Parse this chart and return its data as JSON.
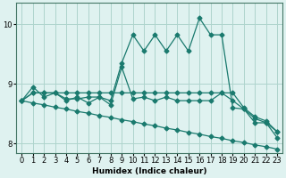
{
  "title": "",
  "xlabel": "Humidex (Indice chaleur)",
  "ylabel": "",
  "background_color": "#dff2f0",
  "grid_color": "#aed4cc",
  "line_color": "#1a7a6e",
  "xlim": [
    -0.5,
    23.5
  ],
  "ylim": [
    7.85,
    10.35
  ],
  "yticks": [
    8,
    9,
    10
  ],
  "xticks": [
    0,
    1,
    2,
    3,
    4,
    5,
    6,
    7,
    8,
    9,
    10,
    11,
    12,
    13,
    14,
    15,
    16,
    17,
    18,
    19,
    20,
    21,
    22,
    23
  ],
  "series": [
    {
      "x": [
        0,
        1,
        2,
        3,
        4,
        5,
        6,
        7,
        8,
        9,
        10,
        11,
        12,
        13,
        14,
        15,
        16,
        17,
        18,
        19,
        20,
        21,
        22,
        23
      ],
      "y": [
        8.72,
        8.68,
        8.65,
        8.61,
        8.58,
        8.54,
        8.51,
        8.47,
        8.44,
        8.4,
        8.37,
        8.33,
        8.3,
        8.26,
        8.23,
        8.19,
        8.16,
        8.12,
        8.09,
        8.05,
        8.02,
        7.98,
        7.95,
        7.91
      ]
    },
    {
      "x": [
        0,
        1,
        2,
        3,
        4,
        5,
        6,
        7,
        8,
        9,
        10,
        11,
        12,
        13,
        14,
        15,
        16,
        17,
        18,
        19,
        20,
        21,
        22,
        23
      ],
      "y": [
        8.72,
        8.85,
        8.85,
        8.85,
        8.85,
        8.85,
        8.85,
        8.85,
        8.85,
        8.85,
        8.85,
        8.85,
        8.85,
        8.85,
        8.85,
        8.85,
        8.85,
        8.85,
        8.85,
        8.85,
        8.6,
        8.45,
        8.38,
        8.2
      ]
    },
    {
      "x": [
        0,
        1,
        2,
        3,
        4,
        5,
        6,
        7,
        8,
        9,
        10,
        11,
        12,
        13,
        14,
        15,
        16,
        17,
        18,
        19,
        20,
        21,
        22,
        23
      ],
      "y": [
        8.72,
        8.85,
        8.85,
        8.85,
        8.75,
        8.75,
        8.78,
        8.78,
        8.72,
        9.35,
        9.82,
        9.55,
        9.82,
        9.55,
        9.82,
        9.55,
        10.1,
        9.82,
        9.82,
        8.6,
        8.58,
        8.42,
        8.35,
        8.1
      ]
    },
    {
      "x": [
        0,
        1,
        2,
        3,
        4,
        5,
        6,
        7,
        8,
        9,
        10,
        11,
        12,
        13,
        14,
        15,
        16,
        17,
        18,
        19,
        20,
        21,
        22,
        23
      ],
      "y": [
        8.72,
        8.95,
        8.78,
        8.85,
        8.72,
        8.78,
        8.68,
        8.78,
        8.65,
        9.28,
        8.75,
        8.78,
        8.72,
        8.78,
        8.72,
        8.72,
        8.72,
        8.72,
        8.85,
        8.72,
        8.58,
        8.35,
        8.35,
        8.2
      ]
    }
  ],
  "markersize": 2.5,
  "linewidth": 0.9
}
